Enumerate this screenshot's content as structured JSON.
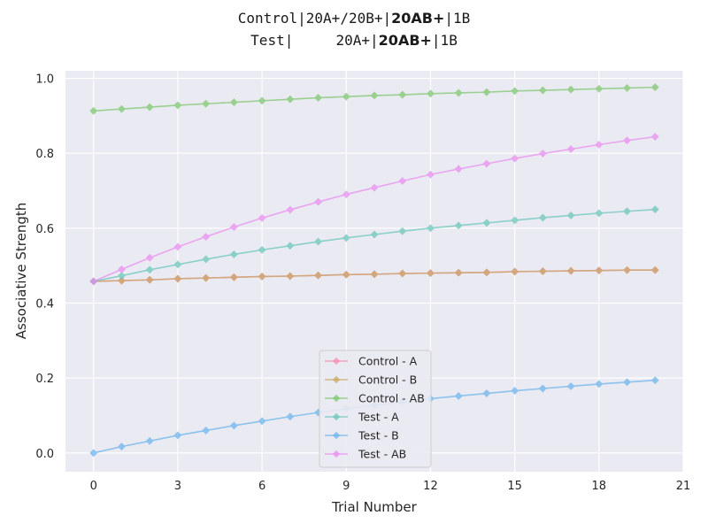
{
  "title": {
    "line1": {
      "prefix": "Control|20A+/20B+|",
      "bold": "20AB+",
      "suffix": "|1B"
    },
    "line2": {
      "prefix": "Test|     20A+|",
      "bold": "20AB+",
      "suffix": "|1B"
    }
  },
  "chart_data": {
    "type": "line",
    "xlabel": "Trial Number",
    "ylabel": "Associative Strength",
    "xlim": [
      -1,
      21
    ],
    "ylim": [
      -0.05,
      1.02
    ],
    "xticks": [
      0,
      3,
      6,
      9,
      12,
      15,
      18,
      21
    ],
    "yticks": [
      0.0,
      0.2,
      0.4,
      0.6,
      0.8,
      1.0
    ],
    "grid": true,
    "legend_position": "bottom-center",
    "x": [
      0,
      1,
      2,
      3,
      4,
      5,
      6,
      7,
      8,
      9,
      10,
      11,
      12,
      13,
      14,
      15,
      16,
      17,
      18,
      19,
      20
    ],
    "series": [
      {
        "name": "Control - A",
        "color": "#f48fb1",
        "values": [
          0.458,
          0.46,
          0.462,
          0.465,
          0.467,
          0.469,
          0.471,
          0.472,
          0.474,
          0.476,
          0.477,
          0.479,
          0.48,
          0.481,
          0.482,
          0.484,
          0.485,
          0.486,
          0.487,
          0.488,
          0.488
        ]
      },
      {
        "name": "Control - B",
        "color": "#c9a867",
        "values": [
          0.458,
          0.46,
          0.462,
          0.465,
          0.467,
          0.469,
          0.471,
          0.472,
          0.474,
          0.476,
          0.477,
          0.479,
          0.48,
          0.481,
          0.482,
          0.484,
          0.485,
          0.486,
          0.487,
          0.488,
          0.488
        ]
      },
      {
        "name": "Control - AB",
        "color": "#7ec870",
        "values": [
          0.913,
          0.918,
          0.923,
          0.928,
          0.932,
          0.936,
          0.94,
          0.944,
          0.948,
          0.951,
          0.954,
          0.956,
          0.959,
          0.961,
          0.963,
          0.966,
          0.968,
          0.97,
          0.972,
          0.974,
          0.976
        ]
      },
      {
        "name": "Test - A",
        "color": "#6bc7bb",
        "values": [
          0.458,
          0.473,
          0.489,
          0.503,
          0.517,
          0.53,
          0.542,
          0.553,
          0.564,
          0.574,
          0.583,
          0.592,
          0.6,
          0.607,
          0.614,
          0.621,
          0.628,
          0.634,
          0.64,
          0.645,
          0.65
        ]
      },
      {
        "name": "Test - B",
        "color": "#6db5ec",
        "values": [
          0.0,
          0.017,
          0.032,
          0.047,
          0.06,
          0.073,
          0.085,
          0.097,
          0.108,
          0.118,
          0.127,
          0.136,
          0.145,
          0.152,
          0.159,
          0.166,
          0.172,
          0.178,
          0.184,
          0.189,
          0.194
        ]
      },
      {
        "name": "Test - AB",
        "color": "#ea8ef0",
        "values": [
          0.458,
          0.49,
          0.521,
          0.55,
          0.577,
          0.603,
          0.627,
          0.649,
          0.67,
          0.69,
          0.708,
          0.726,
          0.743,
          0.758,
          0.772,
          0.786,
          0.799,
          0.811,
          0.823,
          0.834,
          0.844
        ]
      }
    ]
  }
}
